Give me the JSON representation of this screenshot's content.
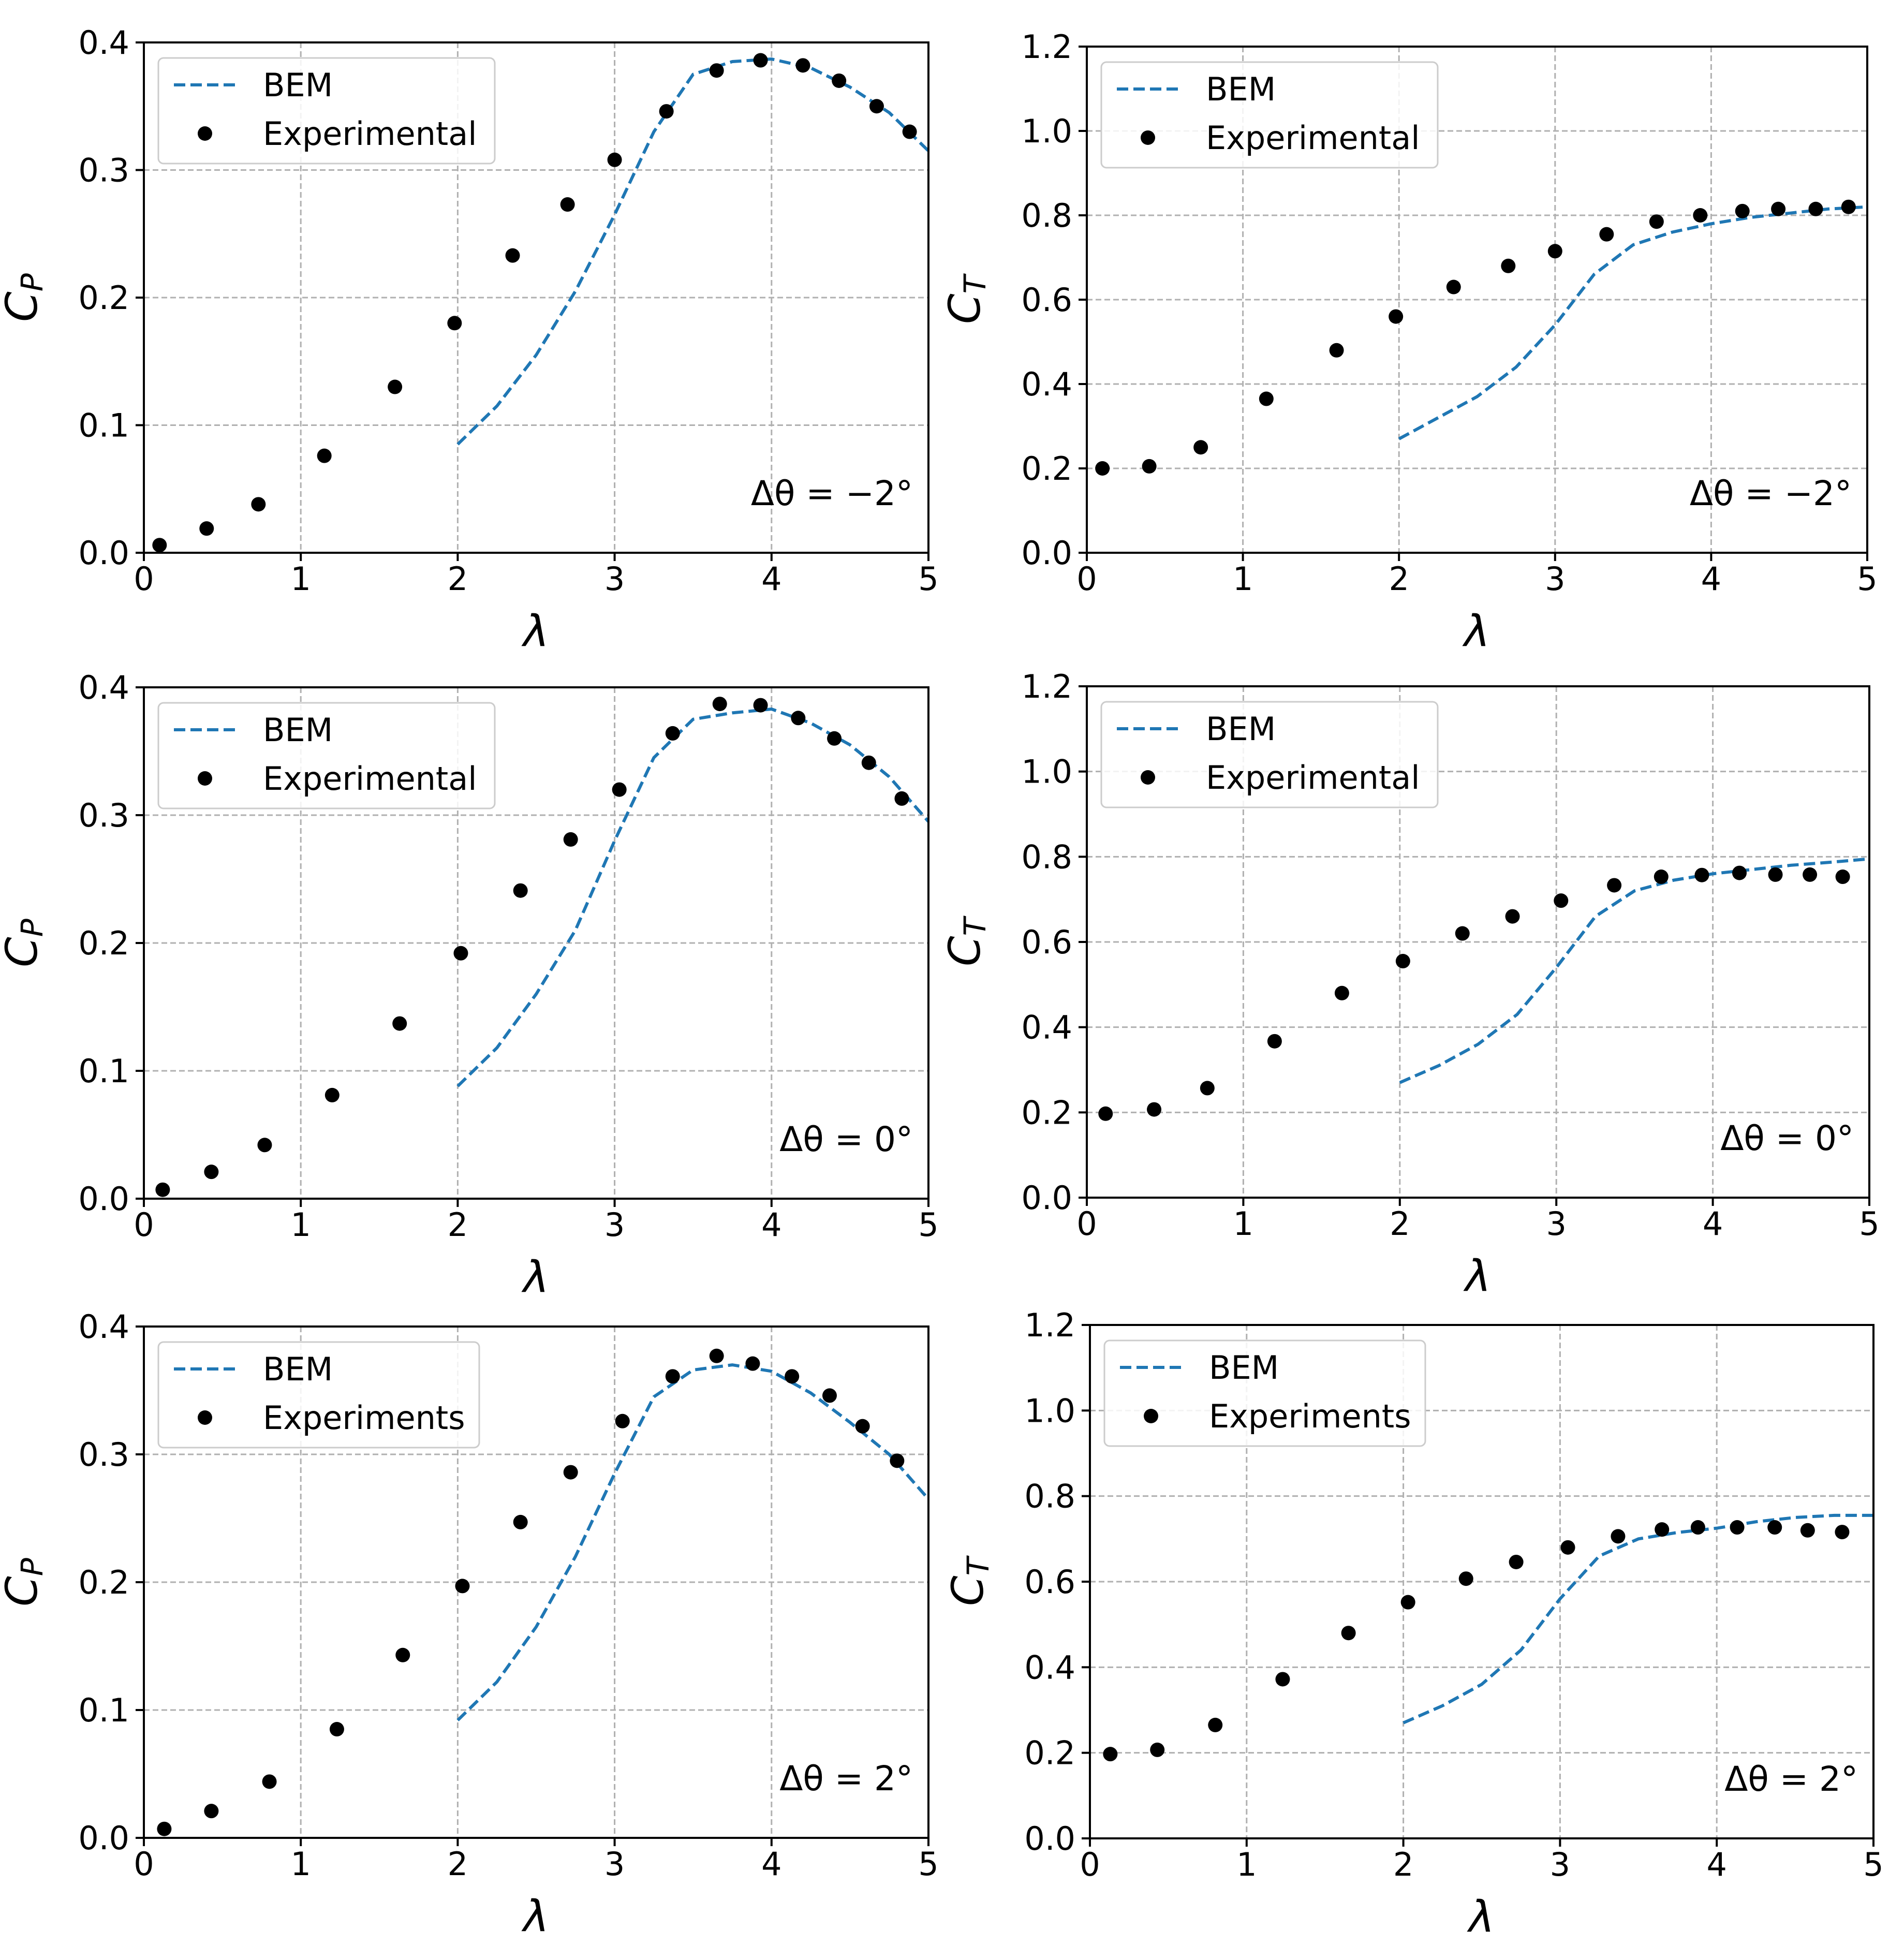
{
  "figure": {
    "colors": {
      "bem": "#1f77b4",
      "experimental": "#000000",
      "grid": "#b0b0b0"
    }
  },
  "chart_data": [
    {
      "id": "cp-minus2",
      "type": "line",
      "ylabel": "C_P",
      "xlabel": "λ",
      "xlim": [
        0,
        5
      ],
      "ylim": [
        0,
        0.4
      ],
      "xticks": [
        "0",
        "1",
        "2",
        "3",
        "4",
        "5"
      ],
      "yticks": [
        "0.0",
        "0.1",
        "0.2",
        "0.3",
        "0.4"
      ],
      "annotation": "Δθ = −2°",
      "legend": [
        "BEM",
        "Experimental"
      ],
      "series": [
        {
          "name": "BEM",
          "style": "dashed",
          "x": [
            2.0,
            2.25,
            2.5,
            2.75,
            3.0,
            3.25,
            3.5,
            3.75,
            4.0,
            4.25,
            4.5,
            4.75,
            5.0
          ],
          "y": [
            0.085,
            0.115,
            0.155,
            0.205,
            0.265,
            0.33,
            0.375,
            0.385,
            0.387,
            0.38,
            0.365,
            0.345,
            0.315
          ]
        },
        {
          "name": "Experimental",
          "style": "markers",
          "x": [
            0.1,
            0.4,
            0.73,
            1.15,
            1.6,
            1.98,
            2.35,
            2.7,
            3.0,
            3.33,
            3.65,
            3.93,
            4.2,
            4.43,
            4.67,
            4.88
          ],
          "y": [
            0.006,
            0.019,
            0.038,
            0.076,
            0.13,
            0.18,
            0.233,
            0.273,
            0.308,
            0.346,
            0.378,
            0.386,
            0.382,
            0.37,
            0.35,
            0.33
          ]
        }
      ]
    },
    {
      "id": "ct-minus2",
      "type": "line",
      "ylabel": "C_T",
      "xlabel": "λ",
      "xlim": [
        0,
        5
      ],
      "ylim": [
        0,
        1.2
      ],
      "xticks": [
        "0",
        "1",
        "2",
        "3",
        "4",
        "5"
      ],
      "yticks": [
        "0.0",
        "0.2",
        "0.4",
        "0.6",
        "0.8",
        "1.0",
        "1.2"
      ],
      "annotation": "Δθ = −2°",
      "legend": [
        "BEM",
        "Experimental"
      ],
      "series": [
        {
          "name": "BEM",
          "style": "dashed",
          "x": [
            2.0,
            2.25,
            2.5,
            2.75,
            3.0,
            3.25,
            3.5,
            3.75,
            4.0,
            4.25,
            4.5,
            4.75,
            5.0
          ],
          "y": [
            0.27,
            0.32,
            0.37,
            0.44,
            0.54,
            0.66,
            0.73,
            0.76,
            0.78,
            0.795,
            0.805,
            0.815,
            0.82
          ]
        },
        {
          "name": "Experimental",
          "style": "markers",
          "x": [
            0.1,
            0.4,
            0.73,
            1.15,
            1.6,
            1.98,
            2.35,
            2.7,
            3.0,
            3.33,
            3.65,
            3.93,
            4.2,
            4.43,
            4.67,
            4.88
          ],
          "y": [
            0.2,
            0.205,
            0.25,
            0.365,
            0.48,
            0.56,
            0.63,
            0.68,
            0.715,
            0.755,
            0.785,
            0.8,
            0.81,
            0.815,
            0.815,
            0.82
          ]
        }
      ]
    },
    {
      "id": "cp-0",
      "type": "line",
      "ylabel": "C_P",
      "xlabel": "λ",
      "xlim": [
        0,
        5
      ],
      "ylim": [
        0,
        0.4
      ],
      "xticks": [
        "0",
        "1",
        "2",
        "3",
        "4",
        "5"
      ],
      "yticks": [
        "0.0",
        "0.1",
        "0.2",
        "0.3",
        "0.4"
      ],
      "annotation": "Δθ = 0°",
      "legend": [
        "BEM",
        "Experimental"
      ],
      "series": [
        {
          "name": "BEM",
          "style": "dashed",
          "x": [
            2.0,
            2.25,
            2.5,
            2.75,
            3.0,
            3.25,
            3.5,
            3.75,
            4.0,
            4.25,
            4.5,
            4.75,
            5.0
          ],
          "y": [
            0.088,
            0.118,
            0.16,
            0.21,
            0.28,
            0.345,
            0.375,
            0.38,
            0.383,
            0.372,
            0.355,
            0.33,
            0.295
          ]
        },
        {
          "name": "Experimental",
          "style": "markers",
          "x": [
            0.12,
            0.43,
            0.77,
            1.2,
            1.63,
            2.02,
            2.4,
            2.72,
            3.03,
            3.37,
            3.67,
            3.93,
            4.17,
            4.4,
            4.62,
            4.83
          ],
          "y": [
            0.007,
            0.021,
            0.042,
            0.081,
            0.137,
            0.192,
            0.241,
            0.281,
            0.32,
            0.364,
            0.387,
            0.386,
            0.376,
            0.36,
            0.341,
            0.313
          ]
        }
      ]
    },
    {
      "id": "ct-0",
      "type": "line",
      "ylabel": "C_T",
      "xlabel": "λ",
      "xlim": [
        0,
        5
      ],
      "ylim": [
        0,
        1.2
      ],
      "xticks": [
        "0",
        "1",
        "2",
        "3",
        "4",
        "5"
      ],
      "yticks": [
        "0.0",
        "0.2",
        "0.4",
        "0.6",
        "0.8",
        "1.0",
        "1.2"
      ],
      "annotation": "Δθ = 0°",
      "legend": [
        "BEM",
        "Experimental"
      ],
      "series": [
        {
          "name": "BEM",
          "style": "dashed",
          "x": [
            2.0,
            2.25,
            2.5,
            2.75,
            3.0,
            3.25,
            3.5,
            3.75,
            4.0,
            4.25,
            4.5,
            4.75,
            5.0
          ],
          "y": [
            0.27,
            0.31,
            0.36,
            0.43,
            0.54,
            0.66,
            0.72,
            0.745,
            0.76,
            0.77,
            0.78,
            0.787,
            0.795
          ]
        },
        {
          "name": "Experimental",
          "style": "markers",
          "x": [
            0.12,
            0.43,
            0.77,
            1.2,
            1.63,
            2.02,
            2.4,
            2.72,
            3.03,
            3.37,
            3.67,
            3.93,
            4.17,
            4.4,
            4.62,
            4.83
          ],
          "y": [
            0.197,
            0.207,
            0.257,
            0.367,
            0.48,
            0.555,
            0.62,
            0.66,
            0.697,
            0.733,
            0.753,
            0.757,
            0.762,
            0.758,
            0.758,
            0.753
          ]
        }
      ]
    },
    {
      "id": "cp-plus2",
      "type": "line",
      "ylabel": "C_P",
      "xlabel": "λ",
      "xlim": [
        0,
        5
      ],
      "ylim": [
        0,
        0.4
      ],
      "xticks": [
        "0",
        "1",
        "2",
        "3",
        "4",
        "5"
      ],
      "yticks": [
        "0.0",
        "0.1",
        "0.2",
        "0.3",
        "0.4"
      ],
      "annotation": "Δθ = 2°",
      "legend": [
        "BEM",
        "Experiments"
      ],
      "series": [
        {
          "name": "BEM",
          "style": "dashed",
          "x": [
            2.0,
            2.25,
            2.5,
            2.75,
            3.0,
            3.25,
            3.5,
            3.75,
            4.0,
            4.25,
            4.5,
            4.75,
            5.0
          ],
          "y": [
            0.092,
            0.122,
            0.165,
            0.22,
            0.285,
            0.345,
            0.366,
            0.37,
            0.365,
            0.348,
            0.325,
            0.3,
            0.265
          ]
        },
        {
          "name": "Experiments",
          "style": "markers",
          "x": [
            0.13,
            0.43,
            0.8,
            1.23,
            1.65,
            2.03,
            2.4,
            2.72,
            3.05,
            3.37,
            3.65,
            3.88,
            4.13,
            4.37,
            4.58,
            4.8
          ],
          "y": [
            0.007,
            0.021,
            0.044,
            0.085,
            0.143,
            0.197,
            0.247,
            0.286,
            0.326,
            0.361,
            0.377,
            0.371,
            0.361,
            0.346,
            0.322,
            0.295
          ]
        }
      ]
    },
    {
      "id": "ct-plus2",
      "type": "line",
      "ylabel": "C_T",
      "xlabel": "λ",
      "xlim": [
        0,
        5
      ],
      "ylim": [
        0,
        1.2
      ],
      "xticks": [
        "0",
        "1",
        "2",
        "3",
        "4",
        "5"
      ],
      "yticks": [
        "0.0",
        "0.2",
        "0.4",
        "0.6",
        "0.8",
        "1.0",
        "1.2"
      ],
      "annotation": "Δθ = 2°",
      "legend": [
        "BEM",
        "Experiments"
      ],
      "series": [
        {
          "name": "BEM",
          "style": "dashed",
          "x": [
            2.0,
            2.25,
            2.5,
            2.75,
            3.0,
            3.25,
            3.5,
            3.75,
            4.0,
            4.25,
            4.5,
            4.75,
            5.0
          ],
          "y": [
            0.27,
            0.31,
            0.36,
            0.44,
            0.56,
            0.66,
            0.7,
            0.715,
            0.725,
            0.74,
            0.75,
            0.755,
            0.755
          ]
        },
        {
          "name": "Experiments",
          "style": "markers",
          "x": [
            0.13,
            0.43,
            0.8,
            1.23,
            1.65,
            2.03,
            2.4,
            2.72,
            3.05,
            3.37,
            3.65,
            3.88,
            4.13,
            4.37,
            4.58,
            4.8
          ],
          "y": [
            0.197,
            0.207,
            0.265,
            0.372,
            0.48,
            0.552,
            0.607,
            0.646,
            0.68,
            0.706,
            0.722,
            0.727,
            0.727,
            0.727,
            0.72,
            0.716
          ]
        }
      ]
    }
  ]
}
